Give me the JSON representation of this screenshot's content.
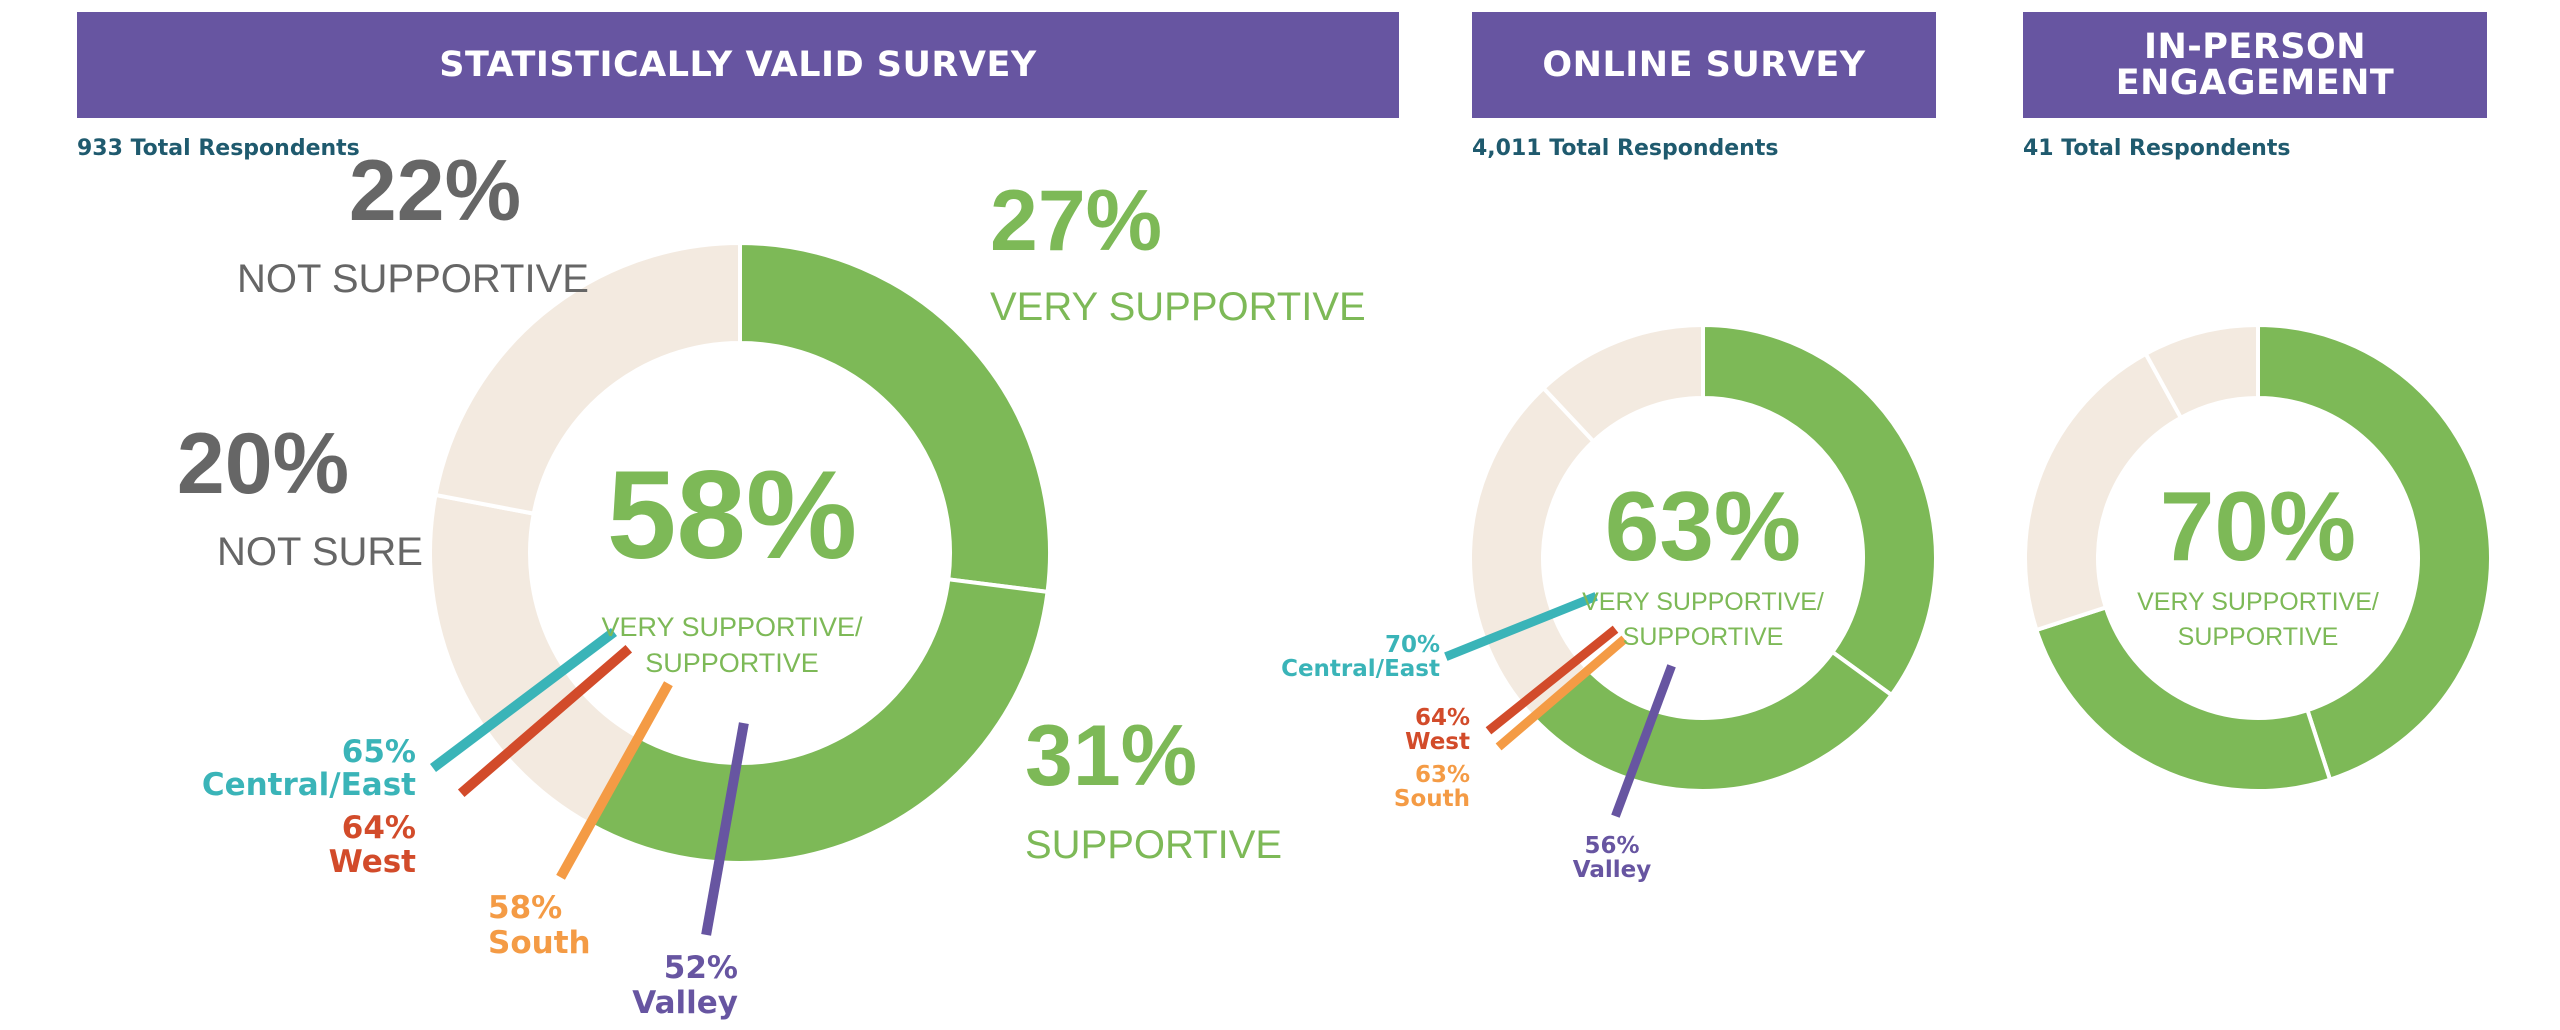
{
  "colors": {
    "header_bg": "#6755A1",
    "supportive_green": "#7DB957",
    "beige": "#F3EAE0",
    "gray_text": "#666666",
    "central_east": "#3AB4B8",
    "west": "#D24B2A",
    "south": "#F49B45",
    "valley": "#6755A1",
    "respondents_text": "#1F5A6E"
  },
  "chart_data": [
    {
      "type": "pie",
      "donut": true,
      "title": "STATISTICALLY VALID SURVEY",
      "respondents": "933 Total Respondents",
      "center": {
        "value": "58%",
        "label_line1": "VERY SUPPORTIVE/",
        "label_line2": "SUPPORTIVE"
      },
      "slices": [
        {
          "name": "VERY SUPPORTIVE",
          "value": 27,
          "label": "27%",
          "color": "#7DB957"
        },
        {
          "name": "SUPPORTIVE",
          "value": 31,
          "label": "31%",
          "color": "#7DB957"
        },
        {
          "name": "NOT SURE",
          "value": 20,
          "label": "20%",
          "color": "#F3EAE0"
        },
        {
          "name": "NOT SUPPORTIVE",
          "value": 22,
          "label": "22%",
          "color": "#F3EAE0"
        }
      ],
      "regions": [
        {
          "name": "Central/East",
          "value": "65%",
          "color": "#3AB4B8"
        },
        {
          "name": "West",
          "value": "64%",
          "color": "#D24B2A"
        },
        {
          "name": "South",
          "value": "58%",
          "color": "#F49B45"
        },
        {
          "name": "Valley",
          "value": "52%",
          "color": "#6755A1"
        }
      ]
    },
    {
      "type": "pie",
      "donut": true,
      "title": "ONLINE SURVEY",
      "respondents": "4,011 Total Respondents",
      "center": {
        "value": "63%",
        "label_line1": "VERY SUPPORTIVE/",
        "label_line2": "SUPPORTIVE"
      },
      "slices": [
        {
          "value": 35,
          "color": "#7DB957"
        },
        {
          "value": 28,
          "color": "#7DB957"
        },
        {
          "value": 25,
          "color": "#F3EAE0"
        },
        {
          "value": 12,
          "color": "#F3EAE0"
        }
      ],
      "regions": [
        {
          "name": "Central/East",
          "value": "70%",
          "color": "#3AB4B8"
        },
        {
          "name": "West",
          "value": "64%",
          "color": "#D24B2A"
        },
        {
          "name": "South",
          "value": "63%",
          "color": "#F49B45"
        },
        {
          "name": "Valley",
          "value": "56%",
          "color": "#6755A1"
        }
      ]
    },
    {
      "type": "pie",
      "donut": true,
      "title": "IN-PERSON\nENGAGEMENT",
      "respondents": "41 Total Respondents",
      "center": {
        "value": "70%",
        "label_line1": "VERY SUPPORTIVE/",
        "label_line2": "SUPPORTIVE"
      },
      "slices": [
        {
          "value": 45,
          "color": "#7DB957"
        },
        {
          "value": 25,
          "color": "#7DB957"
        },
        {
          "value": 22,
          "color": "#F3EAE0"
        },
        {
          "value": 8,
          "color": "#F3EAE0"
        }
      ]
    }
  ]
}
